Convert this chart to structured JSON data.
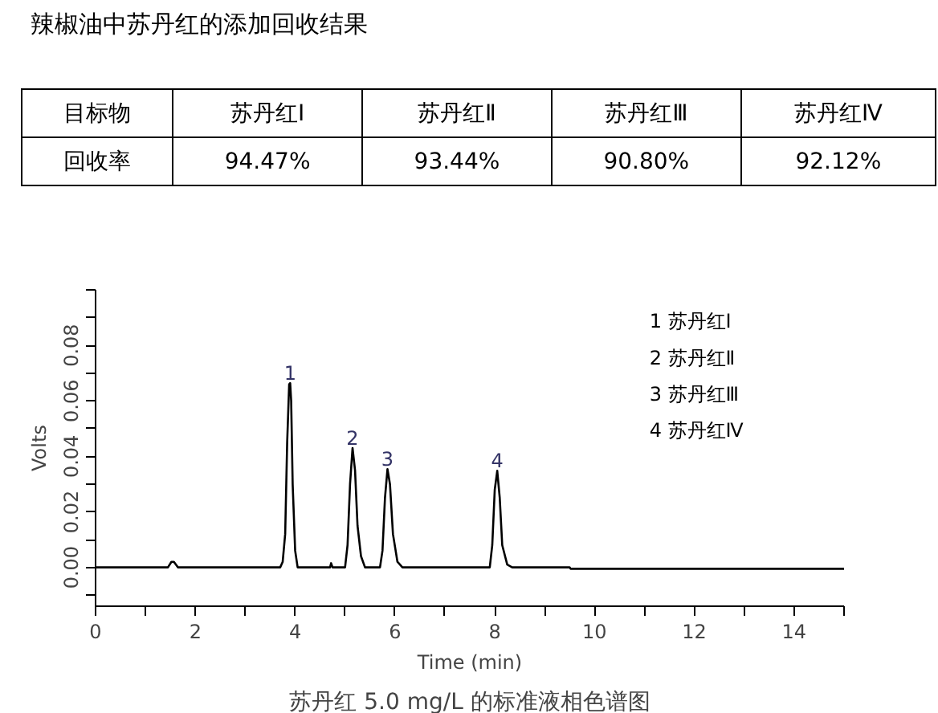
{
  "chart_data": {
    "type": "line",
    "title": "苏丹红 5.0 mg/L 的标准液相色谱图",
    "xlabel": "Time (min)",
    "ylabel": "Volts",
    "xlim": [
      0,
      15
    ],
    "xticks": [
      0,
      {
        "value": 1,
        "label": null
      },
      2,
      {
        "value": 3,
        "label": null
      },
      4,
      {
        "value": 5,
        "label": null
      },
      6,
      {
        "value": 7,
        "label": null
      },
      8,
      {
        "value": 9,
        "label": null
      },
      10,
      {
        "value": 11,
        "label": null
      },
      12,
      {
        "value": 13,
        "label": null
      },
      14,
      {
        "value": 15,
        "label": null
      }
    ],
    "ylim": [
      -0.014,
      0.1
    ],
    "yticks": [
      {
        "value": -0.01,
        "label": null
      },
      {
        "value": 0,
        "label": "0.00"
      },
      {
        "value": 0.01,
        "label": null
      },
      {
        "value": 0.02,
        "label": "0.02"
      },
      {
        "value": 0.03,
        "label": null
      },
      {
        "value": 0.04,
        "label": "0.04"
      },
      {
        "value": 0.05,
        "label": null
      },
      {
        "value": 0.06,
        "label": "0.06"
      },
      {
        "value": 0.07,
        "label": null
      },
      {
        "value": 0.08,
        "label": "0.08"
      },
      {
        "value": 0.09,
        "label": null
      },
      {
        "value": 0.1,
        "label": null
      }
    ],
    "grid": false,
    "series": [
      {
        "color": "#000000",
        "x": [
          0,
          1.45,
          1.52,
          1.57,
          1.65,
          3.7,
          3.75,
          3.8,
          3.84,
          3.88,
          3.9,
          3.92,
          3.95,
          4.0,
          4.05,
          4.7,
          4.72,
          4.75,
          5.0,
          5.05,
          5.1,
          5.15,
          5.2,
          5.25,
          5.32,
          5.4,
          5.7,
          5.75,
          5.8,
          5.85,
          5.9,
          5.96,
          6.05,
          6.15,
          7.9,
          7.95,
          8.0,
          8.05,
          8.1,
          8.15,
          8.25,
          8.35,
          9.5,
          9.52,
          15
        ],
        "values": [
          0,
          0,
          0.002,
          0.002,
          0,
          0,
          0.002,
          0.012,
          0.045,
          0.066,
          0.0664,
          0.06,
          0.03,
          0.006,
          0,
          0,
          0.0015,
          0,
          0,
          0.008,
          0.03,
          0.043,
          0.035,
          0.015,
          0.004,
          0,
          0,
          0.006,
          0.025,
          0.0354,
          0.03,
          0.012,
          0.002,
          0,
          0,
          0.008,
          0.028,
          0.0348,
          0.025,
          0.008,
          0.001,
          0,
          0,
          -0.0005,
          -0.0005
        ]
      }
    ],
    "annotations": [
      "辣椒油中苏丹红的添加回收结果",
      "目标物",
      "苏丹红Ⅰ",
      "苏丹红Ⅱ",
      "苏丹红Ⅲ",
      "苏丹红Ⅳ",
      "回收率",
      "94.47%",
      "93.44%",
      "90.80%",
      "92.12%",
      "1 苏丹红Ⅰ",
      "2 苏丹红Ⅱ",
      "3 苏丹红Ⅲ",
      "4 苏丹红Ⅳ",
      {
        "text": "1",
        "x": 3.9,
        "y": 0.0664
      },
      {
        "text": "2",
        "x": 5.15,
        "y": 0.043
      },
      {
        "text": "3",
        "x": 5.85,
        "y": 0.0354
      },
      {
        "text": "4",
        "x": 8.05,
        "y": 0.0348
      }
    ]
  }
}
